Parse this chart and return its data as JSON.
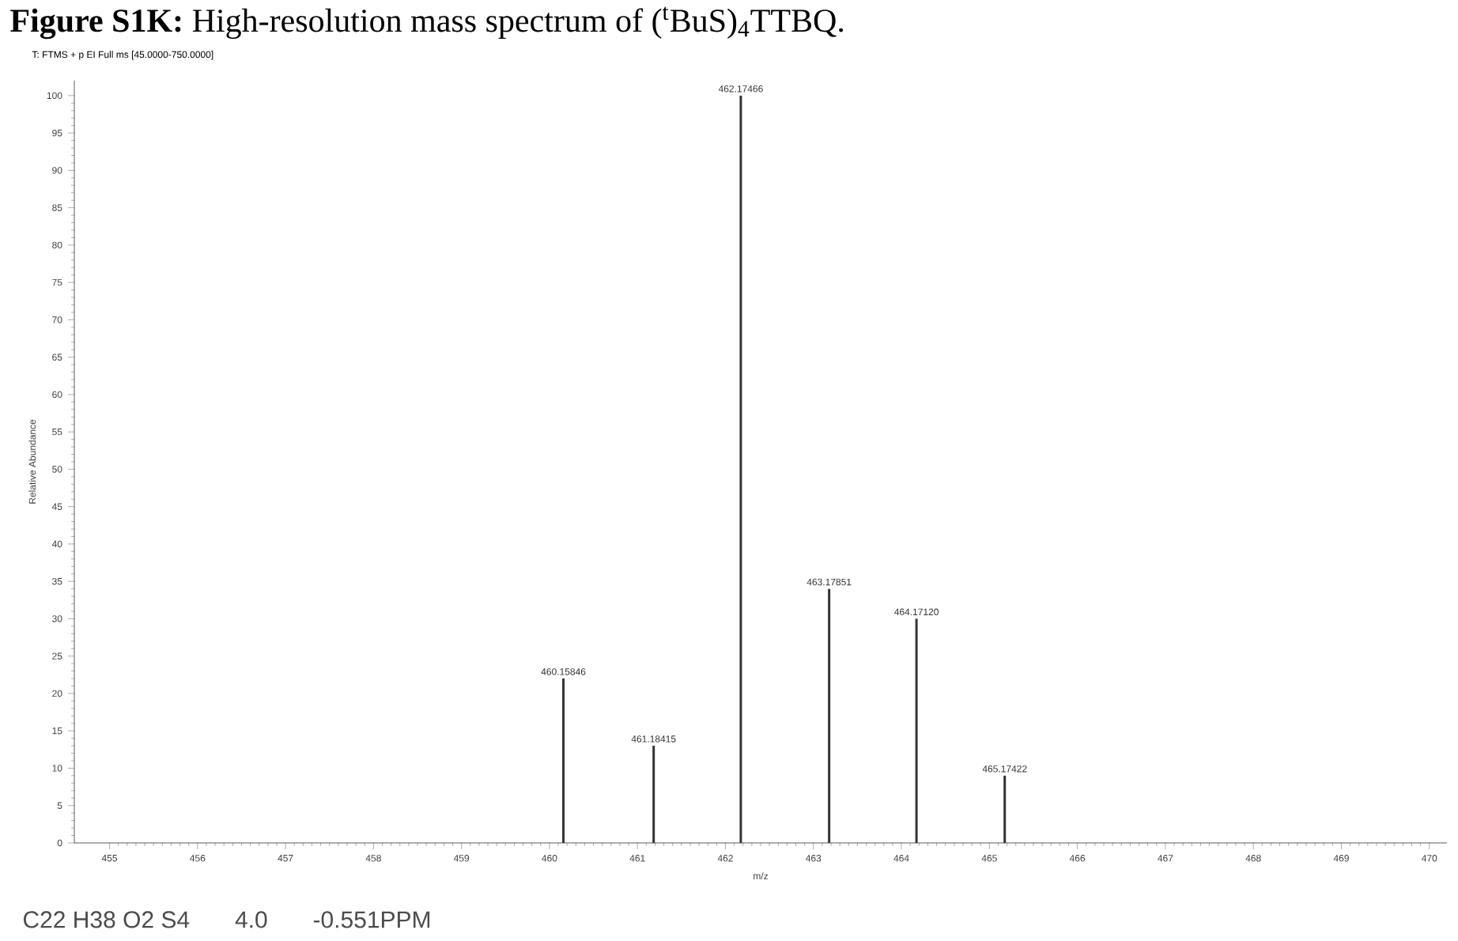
{
  "chart_data": {
    "type": "bar",
    "title": "**Figure S1K:** High-resolution mass spectrum of ($^{t}$BuS)$_{4}$TTBQ.",
    "subtitle": "T: FTMS + p EI Full ms [45.0000-750.0000]",
    "xlabel": "m/z",
    "ylabel": "Relative Abundance",
    "x": [
      460.15846,
      461.18415,
      462.17466,
      463.17851,
      464.1712,
      465.17422
    ],
    "values": [
      22,
      13,
      100,
      34,
      30,
      9
    ],
    "color": "#333333",
    "xlim": [
      454.6,
      470.2
    ],
    "ylim": [
      0,
      102
    ],
    "xticks": [
      455,
      456,
      457,
      458,
      459,
      460,
      461,
      462,
      463,
      464,
      465,
      466,
      467,
      468,
      469,
      470
    ],
    "yticks": [
      0,
      5,
      10,
      15,
      20,
      25,
      30,
      35,
      40,
      45,
      50,
      55,
      60,
      65,
      70,
      75,
      80,
      85,
      90,
      95,
      100
    ],
    "annotations": [
      {
        "text": "460.15846",
        "x": 460.15846,
        "y": 22
      },
      {
        "text": "461.18415",
        "x": 461.18415,
        "y": 13
      },
      {
        "text": "462.17466",
        "x": 462.17466,
        "y": 100
      },
      {
        "text": "463.17851",
        "x": 463.17851,
        "y": 34
      },
      {
        "text": "464.17120",
        "x": 464.1712,
        "y": 30
      },
      {
        "text": "465.17422",
        "x": 465.17422,
        "y": 9
      },
      "C22 H38 O2 S4",
      "4.0",
      "-0.551PPM"
    ]
  }
}
